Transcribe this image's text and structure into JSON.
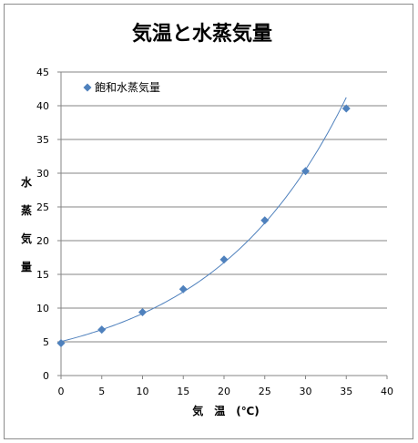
{
  "chart_data": {
    "type": "scatter",
    "title": "気温と水蒸気量",
    "xlabel": "気　温　(℃)",
    "ylabel": "水蒸気量",
    "xlim": [
      0,
      40
    ],
    "ylim": [
      0,
      45
    ],
    "xticks": [
      0,
      5,
      10,
      15,
      20,
      25,
      30,
      35,
      40
    ],
    "yticks": [
      0,
      5,
      10,
      15,
      20,
      25,
      30,
      35,
      40,
      45
    ],
    "grid": "horizontal",
    "legend_position": "top-left",
    "series": [
      {
        "name": "飽和水蒸気量",
        "color": "#4f81bd",
        "marker": "diamond",
        "x": [
          0,
          5,
          10,
          15,
          20,
          25,
          30,
          35
        ],
        "y": [
          4.8,
          6.8,
          9.4,
          12.8,
          17.2,
          23.0,
          30.3,
          39.6
        ]
      }
    ],
    "trendline": {
      "type": "exponential",
      "color": "#4f81bd",
      "x_range": [
        0,
        35
      ]
    }
  }
}
